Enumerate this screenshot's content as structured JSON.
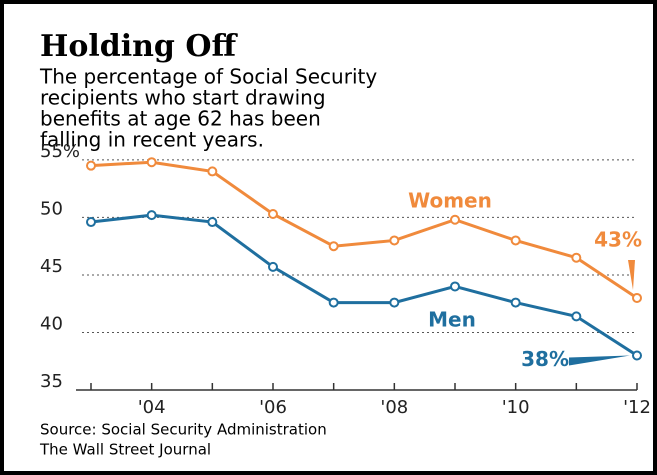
{
  "chart_data": {
    "type": "line",
    "title": "Holding Off",
    "subtitle": [
      "The percentage of Social Security",
      "recipients who start drawing",
      "benefits at age 62 has been",
      "falling in recent years."
    ],
    "source": [
      "Source: Social Security Administration",
      "The Wall Street Journal"
    ],
    "x": [
      2003,
      2004,
      2005,
      2006,
      2007,
      2008,
      2009,
      2010,
      2011,
      2012
    ],
    "xlim": [
      2003,
      2012
    ],
    "xticks": [
      {
        "value": 2004,
        "label": "'04"
      },
      {
        "value": 2006,
        "label": "'06"
      },
      {
        "value": 2008,
        "label": "'08"
      },
      {
        "value": 2010,
        "label": "'10"
      },
      {
        "value": 2012,
        "label": "'12"
      }
    ],
    "ylim": [
      35,
      56
    ],
    "yticks": [
      {
        "value": 55,
        "label": "55%"
      },
      50,
      45,
      40,
      35
    ],
    "grid": true,
    "series": [
      {
        "name": "Women",
        "color": "#f08a3c",
        "values": [
          54.5,
          54.8,
          54.0,
          50.3,
          47.5,
          48.0,
          49.8,
          48.0,
          46.5,
          43
        ],
        "value_labels": [
          null,
          null,
          null,
          null,
          null,
          null,
          null,
          null,
          null,
          "43%"
        ]
      },
      {
        "name": "Men",
        "color": "#1f6f9f",
        "values": [
          49.6,
          50.2,
          49.6,
          45.7,
          42.6,
          42.6,
          44.0,
          42.6,
          41.4,
          38
        ],
        "value_labels": [
          null,
          null,
          null,
          null,
          null,
          null,
          null,
          null,
          null,
          "38%"
        ]
      }
    ]
  }
}
